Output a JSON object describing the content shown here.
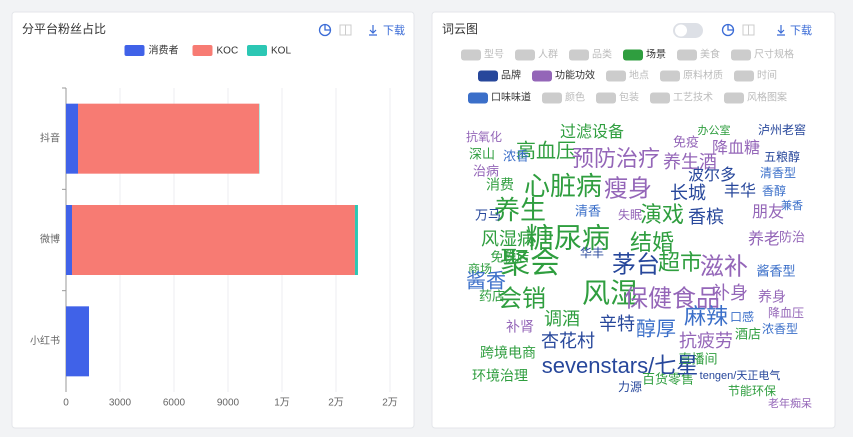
{
  "chart_data": [
    {
      "type": "bar",
      "orientation": "horizontal",
      "stacked": true,
      "title": "分平台粉丝占比",
      "download_label": "下载",
      "categories": [
        "抖音",
        "微博",
        "小红书"
      ],
      "series": [
        {
          "name": "消费者",
          "color": "#4062e8",
          "values": [
            667,
            333,
            1278
          ]
        },
        {
          "name": "KOC",
          "color": "#f77b73",
          "values": [
            10055,
            15720,
            0
          ]
        },
        {
          "name": "KOL",
          "color": "#2cc7b4",
          "values": [
            20,
            167,
            0
          ]
        }
      ],
      "xlim": [
        0,
        18000
      ],
      "xticks": [
        0,
        3000,
        6000,
        9000,
        {
          "value": 12000,
          "label": "1万"
        },
        {
          "value": 15000,
          "label": "2万"
        },
        {
          "value": 18000,
          "label": "2万"
        }
      ],
      "grid": true,
      "legend": "top"
    },
    {
      "type": "wordcloud",
      "title": "词云图",
      "download_label": "下载",
      "series": [
        {
          "name": "型号",
          "color": "#cccccc",
          "enabled": false,
          "words": []
        },
        {
          "name": "人群",
          "color": "#cccccc",
          "enabled": false,
          "words": []
        },
        {
          "name": "品类",
          "color": "#cccccc",
          "enabled": false,
          "words": []
        },
        {
          "name": "场景",
          "color": "#2f9e3f",
          "enabled": true,
          "words": [
            "聚会",
            "糖尿病",
            "心脏病",
            "养生",
            "会销",
            "风湿",
            "演戏",
            "结婚",
            "超市",
            "风湿病",
            "高血压",
            "过滤设备",
            "调酒",
            "消费",
            "免税店",
            "药店",
            "跨境电商",
            "环境治理",
            "直播间",
            "百货零售",
            "节能环保",
            "深山",
            "办公室",
            "酒店",
            "商场"
          ]
        },
        {
          "name": "美食",
          "color": "#cccccc",
          "enabled": false,
          "words": []
        },
        {
          "name": "尺寸规格",
          "color": "#cccccc",
          "enabled": false,
          "words": []
        },
        {
          "name": "品牌",
          "color": "#27479b",
          "enabled": true,
          "words": [
            "茅台",
            "长城",
            "丰华",
            "波尔多",
            "香槟",
            "辛特",
            "杏花村",
            "sevenstars/七星",
            "万马",
            "力源",
            "华丰",
            "泸州老窖",
            "五粮醇",
            "tengen/天正电气"
          ]
        },
        {
          "name": "功能功效",
          "color": "#9466b8",
          "enabled": true,
          "words": [
            "预防治疗",
            "瘦身",
            "保健食品",
            "滋补",
            "养生酒",
            "降血糖",
            "朋友",
            "养老",
            "补身",
            "养身",
            "抗疲劳",
            "补肾",
            "老年痴呆",
            "失眠",
            "抗氧化",
            "免疫",
            "治病",
            "防治",
            "降血压"
          ]
        },
        {
          "name": "地点",
          "color": "#cccccc",
          "enabled": false,
          "words": []
        },
        {
          "name": "原料材质",
          "color": "#cccccc",
          "enabled": false,
          "words": []
        },
        {
          "name": "时间",
          "color": "#cccccc",
          "enabled": false,
          "words": []
        },
        {
          "name": "口味味道",
          "color": "#3b6fc9",
          "enabled": true,
          "words": [
            "酱香",
            "酱香型",
            "醇厚",
            "麻辣",
            "清香",
            "浓香",
            "清香型",
            "香醇",
            "兼香",
            "浓香型",
            "口感"
          ]
        },
        {
          "name": "颜色",
          "color": "#cccccc",
          "enabled": false,
          "words": []
        },
        {
          "name": "包装",
          "color": "#cccccc",
          "enabled": false,
          "words": []
        },
        {
          "name": "工艺技术",
          "color": "#cccccc",
          "enabled": false,
          "words": []
        },
        {
          "name": "风格图案",
          "color": "#cccccc",
          "enabled": false,
          "words": []
        }
      ]
    }
  ]
}
